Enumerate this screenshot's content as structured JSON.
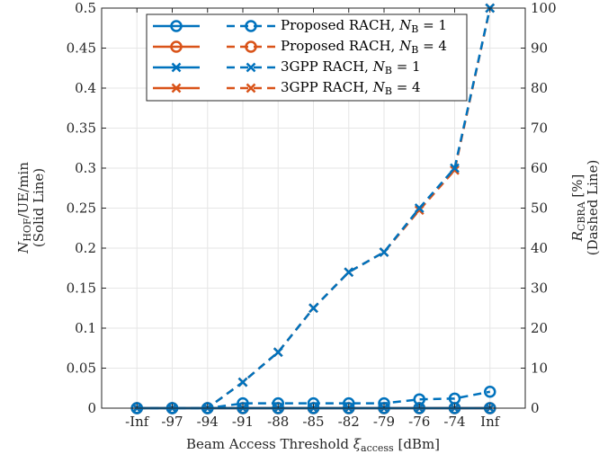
{
  "chart_data": {
    "type": "line",
    "categories": [
      "-Inf",
      "-97",
      "-94",
      "-91",
      "-88",
      "-85",
      "-82",
      "-79",
      "-76",
      "-74",
      "Inf"
    ],
    "xlabel": {
      "main": "Beam Access Threshold ",
      "sym": "ξ",
      "sub": "access",
      "tail": " [dBm]"
    },
    "ylabel_left": {
      "line1_sym": "N",
      "line1_sub": "HOF",
      "line1_tail": "/UE/min",
      "line2": "(Solid Line)"
    },
    "ylabel_right": {
      "line1_sym": "R",
      "line1_sub": "CBRA",
      "line1_tail": " [%]",
      "line2": "(Dashed Line)"
    },
    "ylim_left": [
      0,
      0.5
    ],
    "ylim_right": [
      0,
      100
    ],
    "yticks_left": [
      "0",
      "0.05",
      "0.1",
      "0.15",
      "0.2",
      "0.25",
      "0.3",
      "0.35",
      "0.4",
      "0.45",
      "0.5"
    ],
    "yticks_right": [
      "0",
      "10",
      "20",
      "30",
      "40",
      "50",
      "60",
      "70",
      "80",
      "90",
      "100"
    ],
    "grid": true,
    "legend_position": "top-center",
    "series": [
      {
        "name": "Proposed RACH, N_B = 1",
        "legend": {
          "prefix": "Proposed RACH, ",
          "sym": "N",
          "sub": "B",
          "suffix": " = 1"
        },
        "color": "#0072BD",
        "marker": "circle",
        "solid_values": [
          0,
          0,
          0,
          0,
          0,
          0,
          0,
          0,
          0,
          0,
          0
        ],
        "dashed_values": [
          0,
          0,
          0,
          1.2,
          1.2,
          1.2,
          1.2,
          1.2,
          2.2,
          2.4,
          4.1
        ]
      },
      {
        "name": "Proposed RACH, N_B = 4",
        "legend": {
          "prefix": "Proposed RACH, ",
          "sym": "N",
          "sub": "B",
          "suffix": " = 4"
        },
        "color": "#D95319",
        "marker": "circle",
        "solid_values": [
          0,
          0,
          0,
          0,
          0,
          0,
          0,
          0,
          0,
          0,
          0
        ],
        "dashed_values": [
          0,
          0,
          0,
          0,
          0,
          0,
          0,
          0,
          0,
          0,
          0
        ]
      },
      {
        "name": "3GPP RACH, N_B = 1",
        "legend": {
          "prefix": "3GPP RACH, ",
          "sym": "N",
          "sub": "B",
          "suffix": " = 1"
        },
        "color": "#0072BD",
        "marker": "x",
        "solid_values": [
          0,
          0,
          0,
          0,
          0,
          0,
          0,
          0,
          0,
          0,
          0
        ],
        "dashed_values": [
          0,
          0,
          0,
          6.5,
          14,
          25,
          34,
          39,
          50,
          60,
          100
        ]
      },
      {
        "name": "3GPP RACH, N_B = 4",
        "legend": {
          "prefix": "3GPP RACH, ",
          "sym": "N",
          "sub": "B",
          "suffix": " = 4"
        },
        "color": "#D95319",
        "marker": "x",
        "solid_values": [
          0,
          0,
          0,
          0,
          0,
          0,
          0,
          0,
          0,
          0,
          0
        ],
        "dashed_values": [
          0,
          0,
          0,
          6.5,
          14,
          25,
          34,
          39,
          49.5,
          59.5,
          100
        ]
      }
    ]
  }
}
